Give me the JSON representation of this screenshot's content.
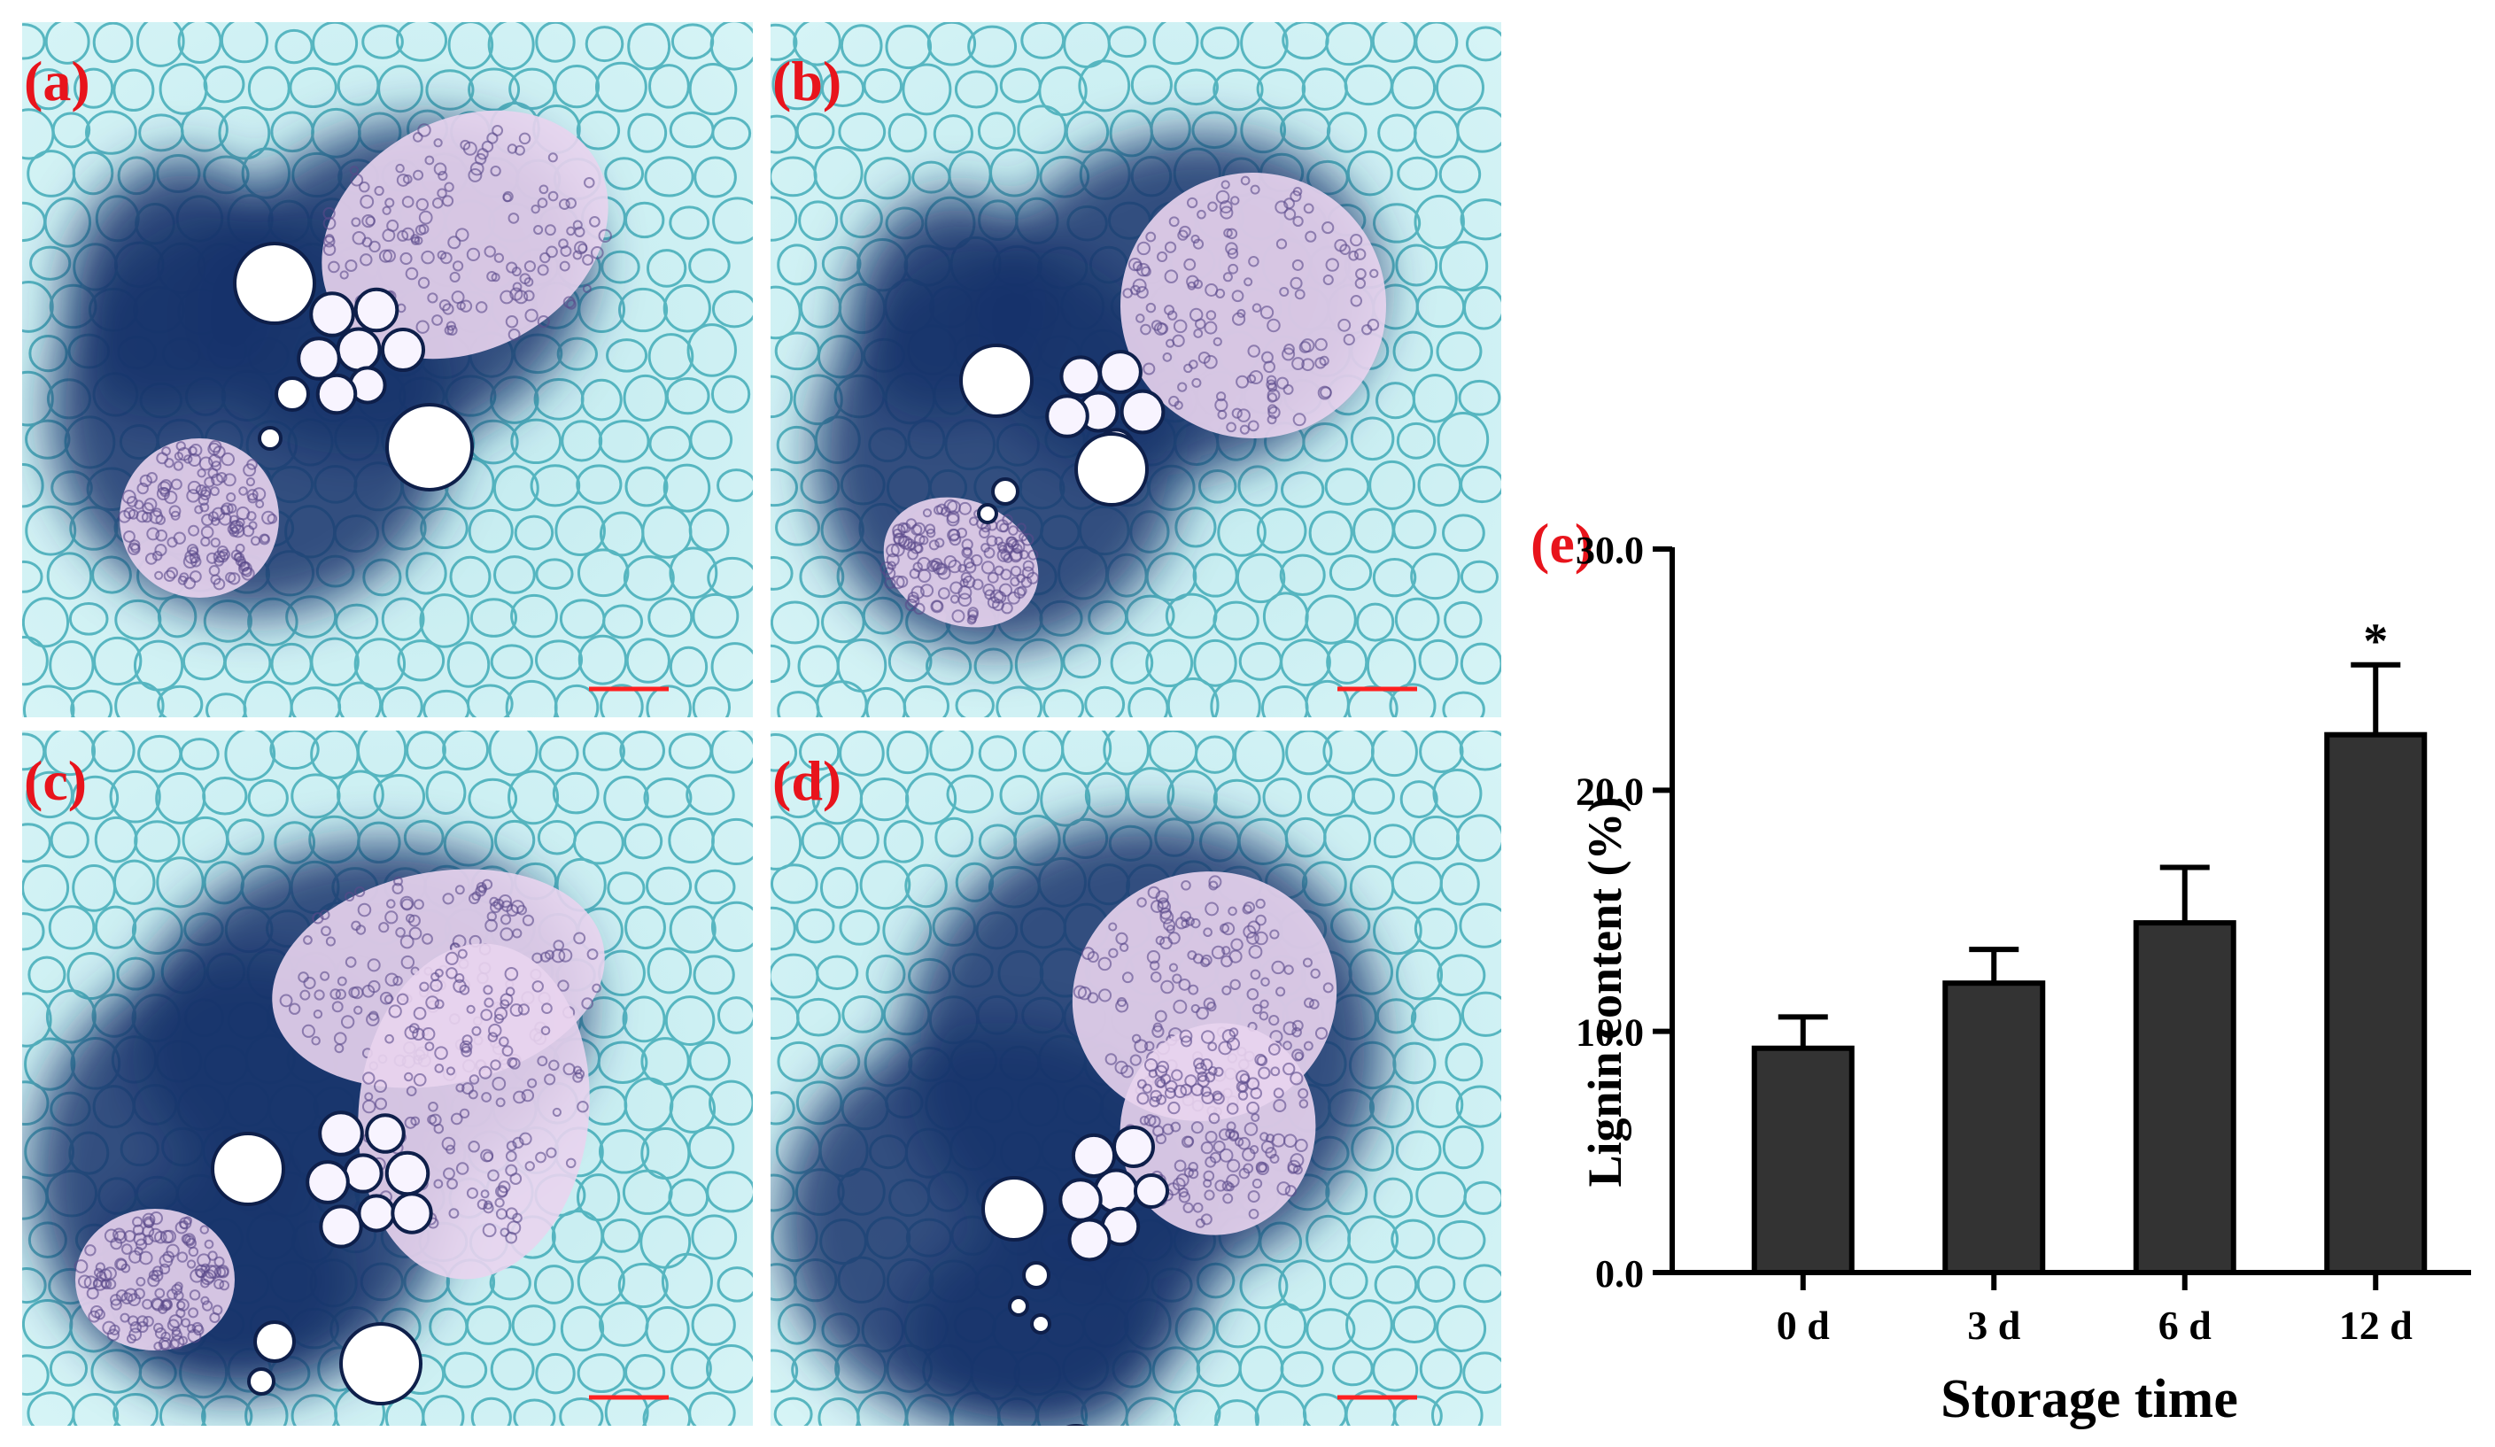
{
  "figure": {
    "panels": [
      {
        "label": "(a)",
        "scale_bar_color": "#ff2020"
      },
      {
        "label": "(b)",
        "scale_bar_color": "#ff2020"
      },
      {
        "label": "(c)",
        "scale_bar_color": "#ff2020"
      },
      {
        "label": "(d)",
        "scale_bar_color": "#ff2020"
      }
    ],
    "colors": {
      "stain_light": "#d6f4f6",
      "stain_cell_wall": "#2fa3b0",
      "stain_dark": "#17336b",
      "phloem_pink": "#e9d4ee",
      "label_red": "#e8141c",
      "bar_fill": "#333333"
    }
  },
  "chart_data": {
    "type": "bar",
    "panel_label": "(e)",
    "categories": [
      "0 d",
      "3 d",
      "6 d",
      "12 d"
    ],
    "values": [
      9.3,
      12.0,
      14.5,
      22.3
    ],
    "errors": [
      1.3,
      1.4,
      2.3,
      2.9
    ],
    "significance": [
      "",
      "",
      "",
      "*"
    ],
    "title": "",
    "xlabel": "Storage time",
    "ylabel": "Lignin content  (%)",
    "ylim": [
      0,
      30
    ],
    "yticks": [
      0,
      10,
      20,
      30
    ],
    "ytick_labels": [
      "0.0",
      "10.0",
      "20.0",
      "30.0"
    ],
    "grid": false,
    "legend": "none"
  }
}
